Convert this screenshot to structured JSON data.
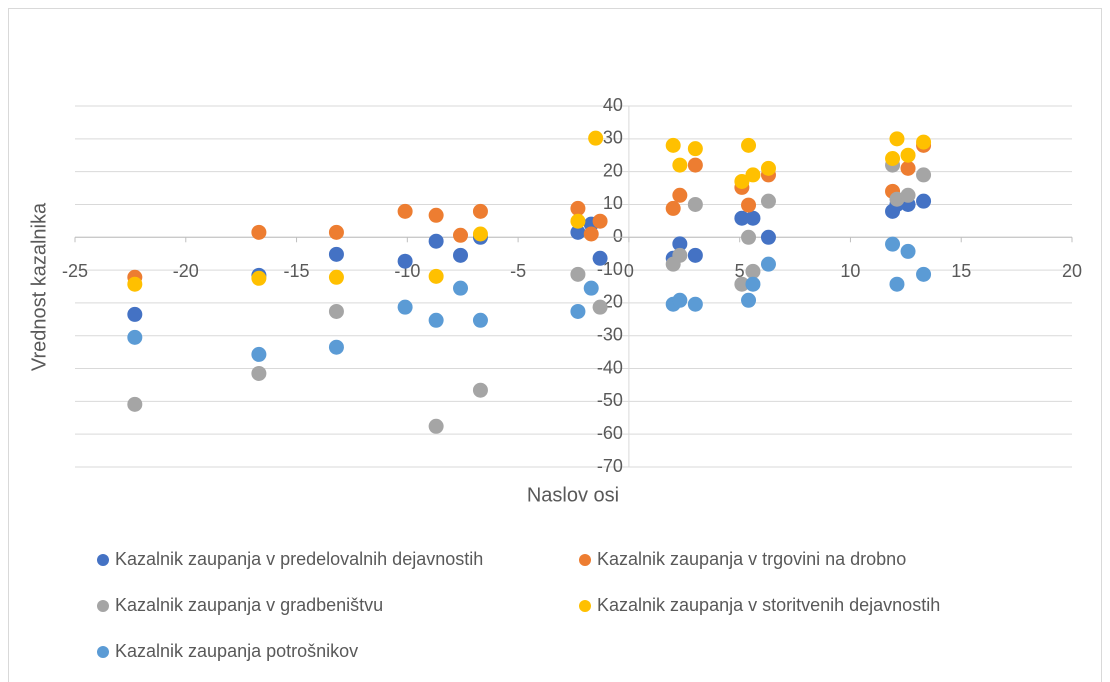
{
  "chart_data": {
    "type": "scatter",
    "x_label": "Naslov osi",
    "y_label": "Vrednost kazalnika",
    "xlim": [
      -25,
      20
    ],
    "xticks": [
      -25,
      -20,
      -15,
      -10,
      -5,
      0,
      5,
      10,
      15,
      20
    ],
    "ylim": [
      -70,
      40
    ],
    "yticks": [
      -70,
      -60,
      -50,
      -40,
      -30,
      -20,
      -10,
      0,
      10,
      20,
      30,
      40
    ],
    "grid": true,
    "legend": "bottom",
    "series": [
      {
        "name": "Kazalnik zaupanja v predelovalnih dejavnostih",
        "color": "#4472c4",
        "x": [
          -22.3,
          -16.7,
          -13.2,
          -10.1,
          -8.7,
          -7.6,
          -6.7,
          -2.3,
          -1.7,
          -1.3,
          2.0,
          2.3,
          3.0,
          5.1,
          5.6,
          6.3,
          11.9,
          12.1,
          12.6,
          13.3
        ],
        "values": [
          -23.5,
          -11.6,
          -5.2,
          -7.3,
          -1.2,
          -5.5,
          0,
          1.5,
          4,
          -6.4,
          -6.4,
          -2,
          -5.5,
          5.8,
          5.8,
          0,
          7.9,
          10,
          10,
          11
        ]
      },
      {
        "name": "Kazalnik zaupanja v trgovini na drobno",
        "color": "#ed7d31",
        "x": [
          -22.3,
          -16.7,
          -13.2,
          -10.1,
          -8.7,
          -7.6,
          -6.7,
          -2.3,
          -1.7,
          -1.3,
          2.0,
          2.3,
          3.0,
          5.1,
          5.4,
          6.3,
          11.9,
          12.6,
          13.3
        ],
        "values": [
          -12.2,
          1.5,
          1.5,
          7.9,
          6.7,
          0.6,
          7.9,
          8.8,
          1,
          4.9,
          8.8,
          12.8,
          22,
          15.2,
          9.8,
          19,
          14,
          21,
          28
        ]
      },
      {
        "name": "Kazalnik zaupanja v gradbeništvu",
        "color": "#a5a5a5",
        "x": [
          -22.3,
          -16.7,
          -13.2,
          -8.7,
          -6.7,
          -2.3,
          -1.3,
          2.0,
          2.3,
          3.0,
          5.1,
          5.4,
          5.6,
          6.3,
          11.9,
          12.1,
          12.6,
          13.3
        ],
        "values": [
          -50.9,
          -41.5,
          -22.6,
          -57.6,
          -46.6,
          -11.3,
          -21.3,
          -8.2,
          -5.5,
          10,
          -14.3,
          0,
          -10.4,
          11,
          22,
          11.6,
          12.8,
          19
        ]
      },
      {
        "name": "Kazalnik zaupanja v storitvenih dejavnostih",
        "color": "#ffc000",
        "x": [
          -22.3,
          -16.7,
          -13.2,
          -8.7,
          -6.7,
          -2.3,
          -1.5,
          2.0,
          2.3,
          3.0,
          5.1,
          5.4,
          5.6,
          6.3,
          11.9,
          12.1,
          12.6,
          13.3
        ],
        "values": [
          -14.3,
          -12.5,
          -12.2,
          -11.9,
          1,
          4.9,
          30.2,
          28,
          22,
          27,
          17,
          28,
          19,
          21,
          24,
          30,
          25,
          29
        ]
      },
      {
        "name": "Kazalnik zaupanja potrošnikov",
        "color": "#5b9bd5",
        "x": [
          -22.3,
          -16.7,
          -13.2,
          -10.1,
          -8.7,
          -7.6,
          -6.7,
          -2.3,
          -1.7,
          2.0,
          2.3,
          3.0,
          5.4,
          5.6,
          6.3,
          11.9,
          12.1,
          12.6,
          13.3
        ],
        "values": [
          -30.5,
          -35.7,
          -33.5,
          -21.3,
          -25.3,
          -15.5,
          -25.3,
          -22.6,
          -15.5,
          -20.4,
          -19.2,
          -20.4,
          -19.2,
          -14.3,
          -8.2,
          -2.1,
          -14.3,
          -4.3,
          -11.3
        ]
      }
    ]
  }
}
